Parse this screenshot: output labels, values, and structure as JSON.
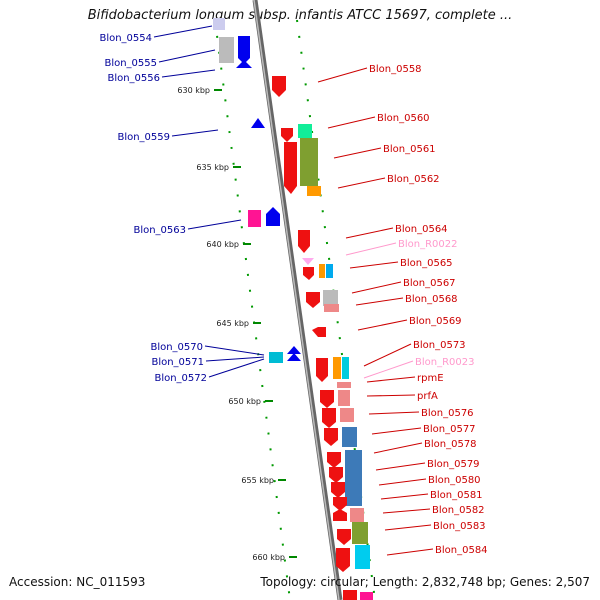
{
  "title": "Bifidobacterium longum subsp. infantis ATCC 15697, complete ...",
  "footer": {
    "accession": "Accession: NC_011593",
    "summary": "Topology: circular; Length: 2,832,748 bp; Genes: 2,507"
  },
  "colors": {
    "backbone": "#888888",
    "left_strand_label": "#000099",
    "right_strand_label": "#cc0000",
    "rna_label": "#ff99cc",
    "tick": "#008800"
  },
  "ticks": [
    "630 kbp",
    "635 kbp",
    "640 kbp",
    "645 kbp",
    "650 kbp",
    "655 kbp",
    "660 kbp"
  ],
  "left_labels": [
    "Blon_0554",
    "Blon_0555",
    "Blon_0556",
    "Blon_0559",
    "Blon_0563",
    "Blon_0570",
    "Blon_0571",
    "Blon_0572"
  ],
  "right_labels": [
    {
      "text": "Blon_0558",
      "kind": "gene"
    },
    {
      "text": "Blon_0560",
      "kind": "gene"
    },
    {
      "text": "Blon_0561",
      "kind": "gene"
    },
    {
      "text": "Blon_0562",
      "kind": "gene"
    },
    {
      "text": "Blon_0564",
      "kind": "gene"
    },
    {
      "text": "Blon_R0022",
      "kind": "rna"
    },
    {
      "text": "Blon_0565",
      "kind": "gene"
    },
    {
      "text": "Blon_0567",
      "kind": "gene"
    },
    {
      "text": "Blon_0568",
      "kind": "gene"
    },
    {
      "text": "Blon_0569",
      "kind": "gene"
    },
    {
      "text": "Blon_0573",
      "kind": "gene"
    },
    {
      "text": "Blon_R0023",
      "kind": "rna"
    },
    {
      "text": "rpmE",
      "kind": "gene"
    },
    {
      "text": "prfA",
      "kind": "gene"
    },
    {
      "text": "Blon_0576",
      "kind": "gene"
    },
    {
      "text": "Blon_0577",
      "kind": "gene"
    },
    {
      "text": "Blon_0578",
      "kind": "gene"
    },
    {
      "text": "Blon_0579",
      "kind": "gene"
    },
    {
      "text": "Blon_0580",
      "kind": "gene"
    },
    {
      "text": "Blon_0581",
      "kind": "gene"
    },
    {
      "text": "Blon_0582",
      "kind": "gene"
    },
    {
      "text": "Blon_0583",
      "kind": "gene"
    },
    {
      "text": "Blon_0584",
      "kind": "gene"
    }
  ]
}
